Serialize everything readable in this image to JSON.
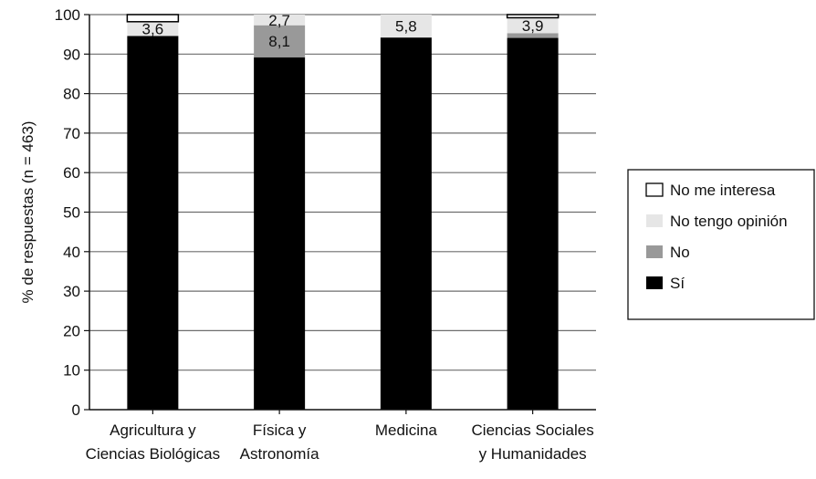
{
  "chart_data": {
    "type": "bar",
    "stacked": true,
    "title": "",
    "xlabel": "",
    "ylabel": "% de respuestas (n = 463)",
    "ylim": [
      0,
      100
    ],
    "yticks": [
      0,
      10,
      20,
      30,
      40,
      50,
      60,
      70,
      80,
      90,
      100
    ],
    "grid": "horizontal",
    "legend_position": "right",
    "categories": [
      [
        "Agricultura y",
        "Ciencias Biológicas"
      ],
      [
        "Física y",
        "Astronomía"
      ],
      [
        "Medicina"
      ],
      [
        "Ciencias Sociales",
        "y Humanidades"
      ]
    ],
    "series": [
      {
        "name": "Sí",
        "color": "#000000",
        "values": [
          94.6,
          89.2,
          94.2,
          94.1
        ]
      },
      {
        "name": "No",
        "color": "#999999",
        "values": [
          0.0,
          8.1,
          0.0,
          1.2
        ]
      },
      {
        "name": "No tengo opinión",
        "color": "#e6e6e6",
        "values": [
          3.6,
          2.7,
          5.8,
          3.9
        ]
      },
      {
        "name": "No me interesa",
        "color": "#ffffff",
        "values": [
          1.8,
          0.0,
          0.0,
          0.8
        ]
      }
    ],
    "legend_order": [
      "No me interesa",
      "No tengo opinión",
      "No",
      "Sí"
    ],
    "data_labels": [
      {
        "category_index": 0,
        "series": "No tengo opinión",
        "text": "3,6"
      },
      {
        "category_index": 1,
        "series": "No tengo opinión",
        "text": "2,7"
      },
      {
        "category_index": 1,
        "series": "No",
        "text": "8,1"
      },
      {
        "category_index": 2,
        "series": "No tengo opinión",
        "text": "5,8"
      },
      {
        "category_index": 3,
        "series": "No tengo opinión",
        "text": "3,9"
      }
    ]
  }
}
